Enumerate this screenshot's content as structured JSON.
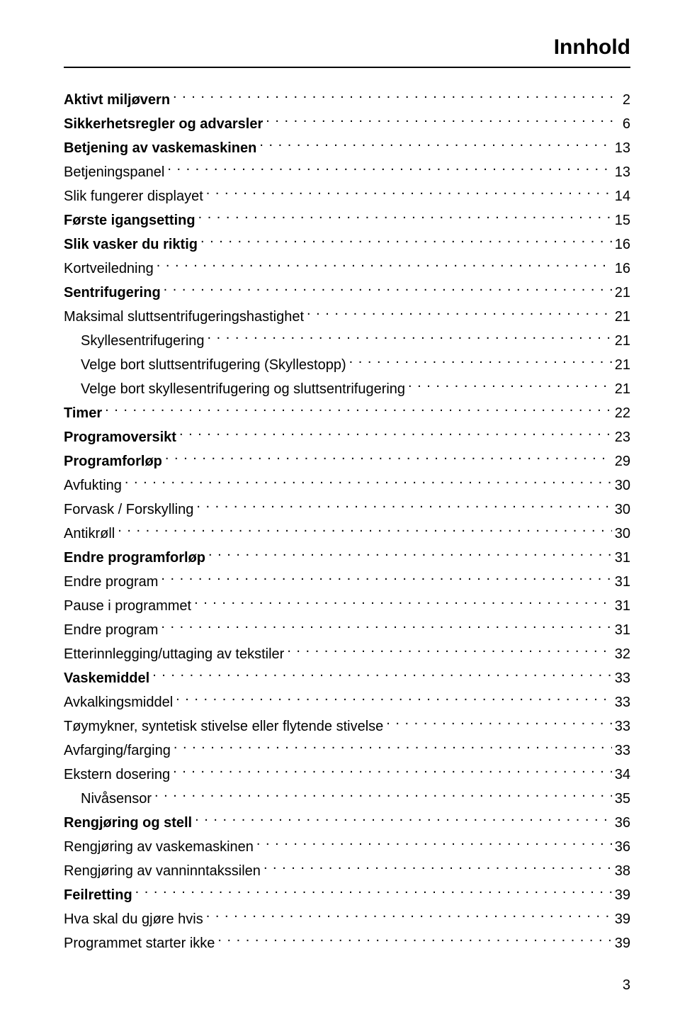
{
  "title": "Innhold",
  "title_fontsize": 30,
  "body_fontsize": 20,
  "line_height": 30,
  "text_color": "#000000",
  "page_number": "3",
  "entries": [
    {
      "label": "Aktivt miljøvern",
      "page": "2",
      "bold": true,
      "indent": 0
    },
    {
      "label": "Sikkerhetsregler og advarsler",
      "page": "6",
      "bold": true,
      "indent": 0
    },
    {
      "label": "Betjening av vaskemaskinen",
      "page": "13",
      "bold": true,
      "indent": 0
    },
    {
      "label": "Betjeningspanel",
      "page": "13",
      "bold": false,
      "indent": 0
    },
    {
      "label": "Slik fungerer displayet",
      "page": "14",
      "bold": false,
      "indent": 0
    },
    {
      "label": "Første igangsetting",
      "page": "15",
      "bold": true,
      "indent": 0
    },
    {
      "label": "Slik vasker du riktig",
      "page": "16",
      "bold": true,
      "indent": 0
    },
    {
      "label": "Kortveiledning",
      "page": "16",
      "bold": false,
      "indent": 0
    },
    {
      "label": "Sentrifugering",
      "page": "21",
      "bold": true,
      "indent": 0
    },
    {
      "label": "Maksimal sluttsentrifugeringshastighet",
      "page": "21",
      "bold": false,
      "indent": 0
    },
    {
      "label": "Skyllesentrifugering",
      "page": "21",
      "bold": false,
      "indent": 1
    },
    {
      "label": "Velge bort sluttsentrifugering (Skyllestopp)",
      "page": "21",
      "bold": false,
      "indent": 1
    },
    {
      "label": "Velge bort skyllesentrifugering og sluttsentrifugering",
      "page": "21",
      "bold": false,
      "indent": 1
    },
    {
      "label": "Timer",
      "page": "22",
      "bold": true,
      "indent": 0
    },
    {
      "label": "Programoversikt",
      "page": "23",
      "bold": true,
      "indent": 0
    },
    {
      "label": "Programforløp",
      "page": "29",
      "bold": true,
      "indent": 0
    },
    {
      "label": "Avfukting",
      "page": "30",
      "bold": false,
      "indent": 0
    },
    {
      "label": "Forvask / Forskylling",
      "page": "30",
      "bold": false,
      "indent": 0
    },
    {
      "label": "Antikrøll",
      "page": "30",
      "bold": false,
      "indent": 0
    },
    {
      "label": "Endre programforløp",
      "page": "31",
      "bold": true,
      "indent": 0
    },
    {
      "label": "Endre program",
      "page": "31",
      "bold": false,
      "indent": 0
    },
    {
      "label": "Pause i programmet",
      "page": "31",
      "bold": false,
      "indent": 0
    },
    {
      "label": "Endre program",
      "page": "31",
      "bold": false,
      "indent": 0
    },
    {
      "label": "Etterinnlegging/uttaging av tekstiler",
      "page": "32",
      "bold": false,
      "indent": 0
    },
    {
      "label": "Vaskemiddel",
      "page": "33",
      "bold": true,
      "indent": 0
    },
    {
      "label": "Avkalkingsmiddel",
      "page": "33",
      "bold": false,
      "indent": 0
    },
    {
      "label": "Tøymykner, syntetisk stivelse eller flytende stivelse",
      "page": "33",
      "bold": false,
      "indent": 0
    },
    {
      "label": "Avfarging/farging",
      "page": "33",
      "bold": false,
      "indent": 0
    },
    {
      "label": "Ekstern dosering",
      "page": "34",
      "bold": false,
      "indent": 0
    },
    {
      "label": "Nivåsensor",
      "page": "35",
      "bold": false,
      "indent": 1
    },
    {
      "label": "Rengjøring og stell",
      "page": "36",
      "bold": true,
      "indent": 0
    },
    {
      "label": "Rengjøring av vaskemaskinen",
      "page": "36",
      "bold": false,
      "indent": 0
    },
    {
      "label": "Rengjøring av vanninntakssilen",
      "page": "38",
      "bold": false,
      "indent": 0
    },
    {
      "label": "Feilretting",
      "page": "39",
      "bold": true,
      "indent": 0
    },
    {
      "label": "Hva skal du gjøre hvis",
      "page": "39",
      "bold": false,
      "indent": 0
    },
    {
      "label": "Programmet starter ikke",
      "page": "39",
      "bold": false,
      "indent": 0
    }
  ]
}
